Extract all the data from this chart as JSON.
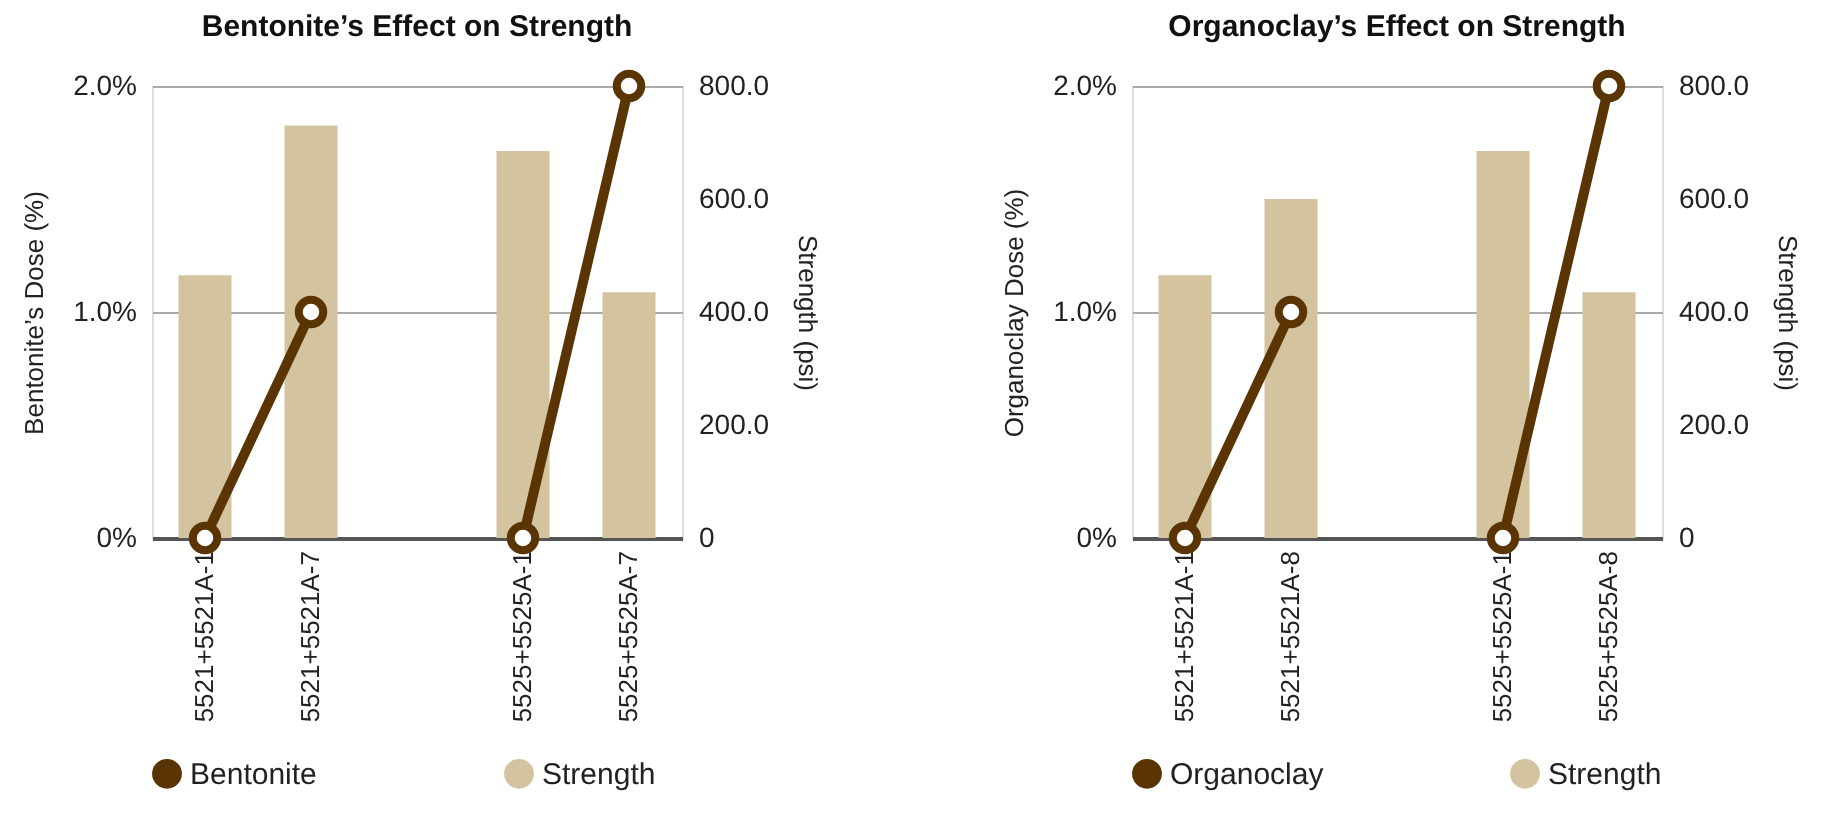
{
  "chart_data": [
    {
      "type": "bar",
      "title": "Bentonite’s Effect on Strength",
      "ylabel": "Bentonite’s Dose (%)",
      "y2label": "Strength (psi)",
      "categories": [
        "5521+5521A-1",
        "5521+5521A-7",
        null,
        "5525+5525A-1",
        "5525+5525A-7"
      ],
      "series": [
        {
          "name": "Bentonite",
          "type": "line",
          "color": "#5a3402",
          "values": [
            0,
            1.0,
            null,
            0,
            2.0
          ]
        },
        {
          "name": "Strength",
          "axis": "y2",
          "color": "#d3c49f",
          "values": [
            465,
            730,
            null,
            685,
            435
          ]
        }
      ],
      "ylim": [
        0,
        2
      ],
      "yticks": [
        {
          "value": 0,
          "label": "0%"
        },
        {
          "value": 1,
          "label": "1.0%"
        },
        {
          "value": 2,
          "label": "2.0%"
        }
      ],
      "y2lim": [
        0,
        800
      ],
      "y2ticks": [
        0,
        {
          "value": 200,
          "label": "200.0"
        },
        {
          "value": 400,
          "label": "400.0"
        },
        {
          "value": 600,
          "label": "600.0"
        },
        {
          "value": 800,
          "label": "800.0"
        }
      ],
      "grid": "y",
      "legend": "bottom",
      "marker": "circle"
    },
    {
      "type": "bar",
      "title": "Organoclay’s Effect on Strength",
      "ylabel": "Organoclay Dose (%)",
      "y2label": "Strength (psi)",
      "categories": [
        "5521+5521A-1",
        "5521+5521A-8",
        null,
        "5525+5525A-1",
        "5525+5525A-8"
      ],
      "series": [
        {
          "name": "Organoclay",
          "type": "line",
          "color": "#5a3402",
          "values": [
            0,
            1.0,
            null,
            0,
            2.0
          ]
        },
        {
          "name": "Strength",
          "axis": "y2",
          "color": "#d3c49f",
          "values": [
            465,
            600,
            null,
            685,
            435
          ]
        }
      ],
      "ylim": [
        0,
        2
      ],
      "yticks": [
        {
          "value": 0,
          "label": "0%"
        },
        {
          "value": 1,
          "label": "1.0%"
        },
        {
          "value": 2,
          "label": "2.0%"
        }
      ],
      "y2lim": [
        0,
        800
      ],
      "y2ticks": [
        0,
        {
          "value": 200,
          "label": "200.0"
        },
        {
          "value": 400,
          "label": "400.0"
        },
        {
          "value": 600,
          "label": "600.0"
        },
        {
          "value": 800,
          "label": "800.0"
        }
      ],
      "grid": "y",
      "legend": "bottom",
      "marker": "circle"
    }
  ]
}
